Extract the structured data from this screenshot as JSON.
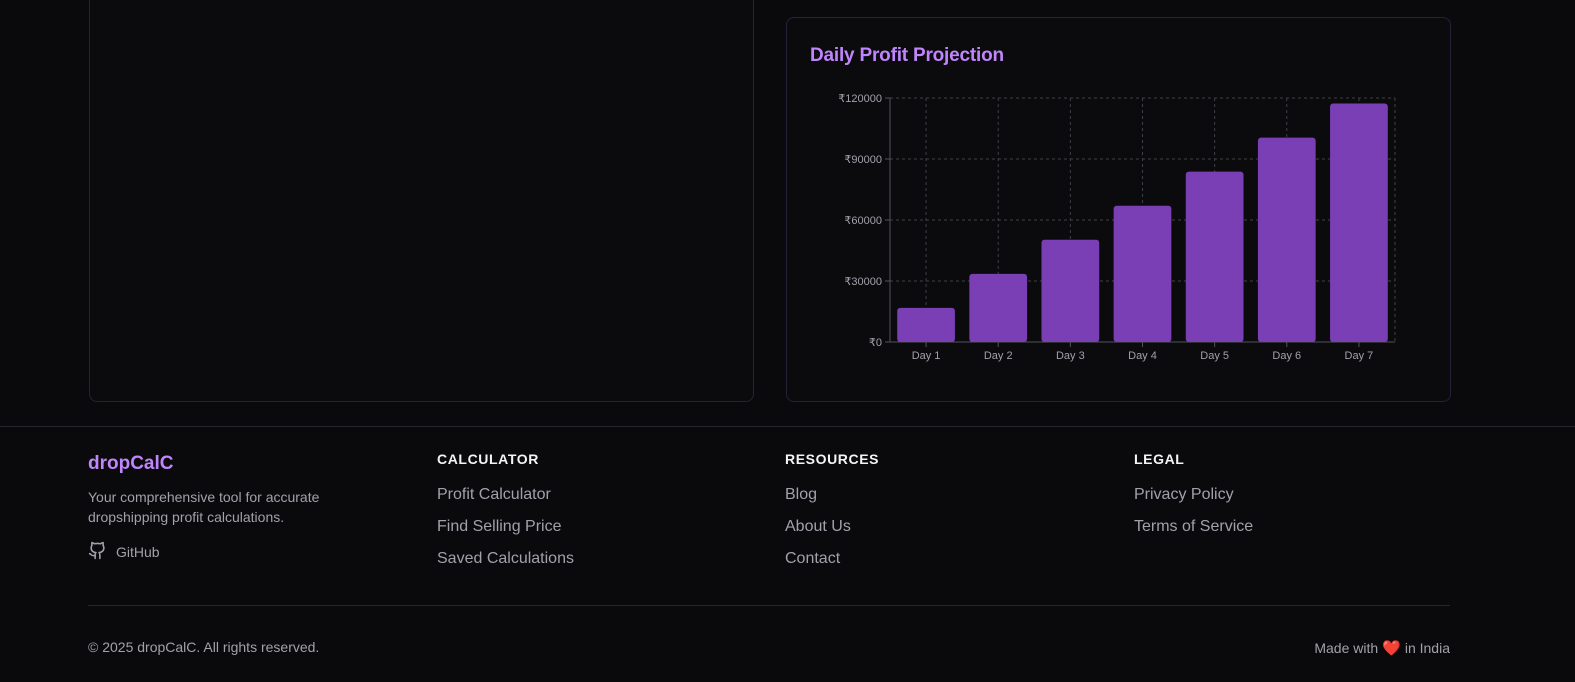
{
  "chart": {
    "title": "Daily Profit Projection"
  },
  "chart_data": {
    "type": "bar",
    "title": "Daily Profit Projection",
    "categories": [
      "Day 1",
      "Day 2",
      "Day 3",
      "Day 4",
      "Day 5",
      "Day 6",
      "Day 7"
    ],
    "values": [
      16800,
      33500,
      50300,
      67000,
      83800,
      100500,
      117300
    ],
    "ylim": [
      0,
      120000
    ],
    "yticks": [
      0,
      30000,
      60000,
      90000,
      120000
    ],
    "ytick_labels": [
      "₹0",
      "₹30000",
      "₹60000",
      "₹90000",
      "₹120000"
    ],
    "grid": true,
    "bar_color": "#7b3fb5",
    "xlabel": "",
    "ylabel": ""
  },
  "footer": {
    "brand": "dropCalC",
    "tagline": "Your comprehensive tool for accurate dropshipping profit calculations.",
    "github_label": "GitHub",
    "columns": {
      "calculator": {
        "heading": "CALCULATOR",
        "links": [
          "Profit Calculator",
          "Find Selling Price",
          "Saved Calculations"
        ]
      },
      "resources": {
        "heading": "RESOURCES",
        "links": [
          "Blog",
          "About Us",
          "Contact"
        ]
      },
      "legal": {
        "heading": "LEGAL",
        "links": [
          "Privacy Policy",
          "Terms of Service"
        ]
      }
    },
    "copyright": "© 2025 dropCalC. All rights reserved.",
    "made_with_prefix": "Made with",
    "made_with_suffix": "in India",
    "heart": "❤️"
  },
  "colors": {
    "accent": "#c084fc",
    "bar": "#7b3fb5",
    "background": "#0a0a0c"
  }
}
